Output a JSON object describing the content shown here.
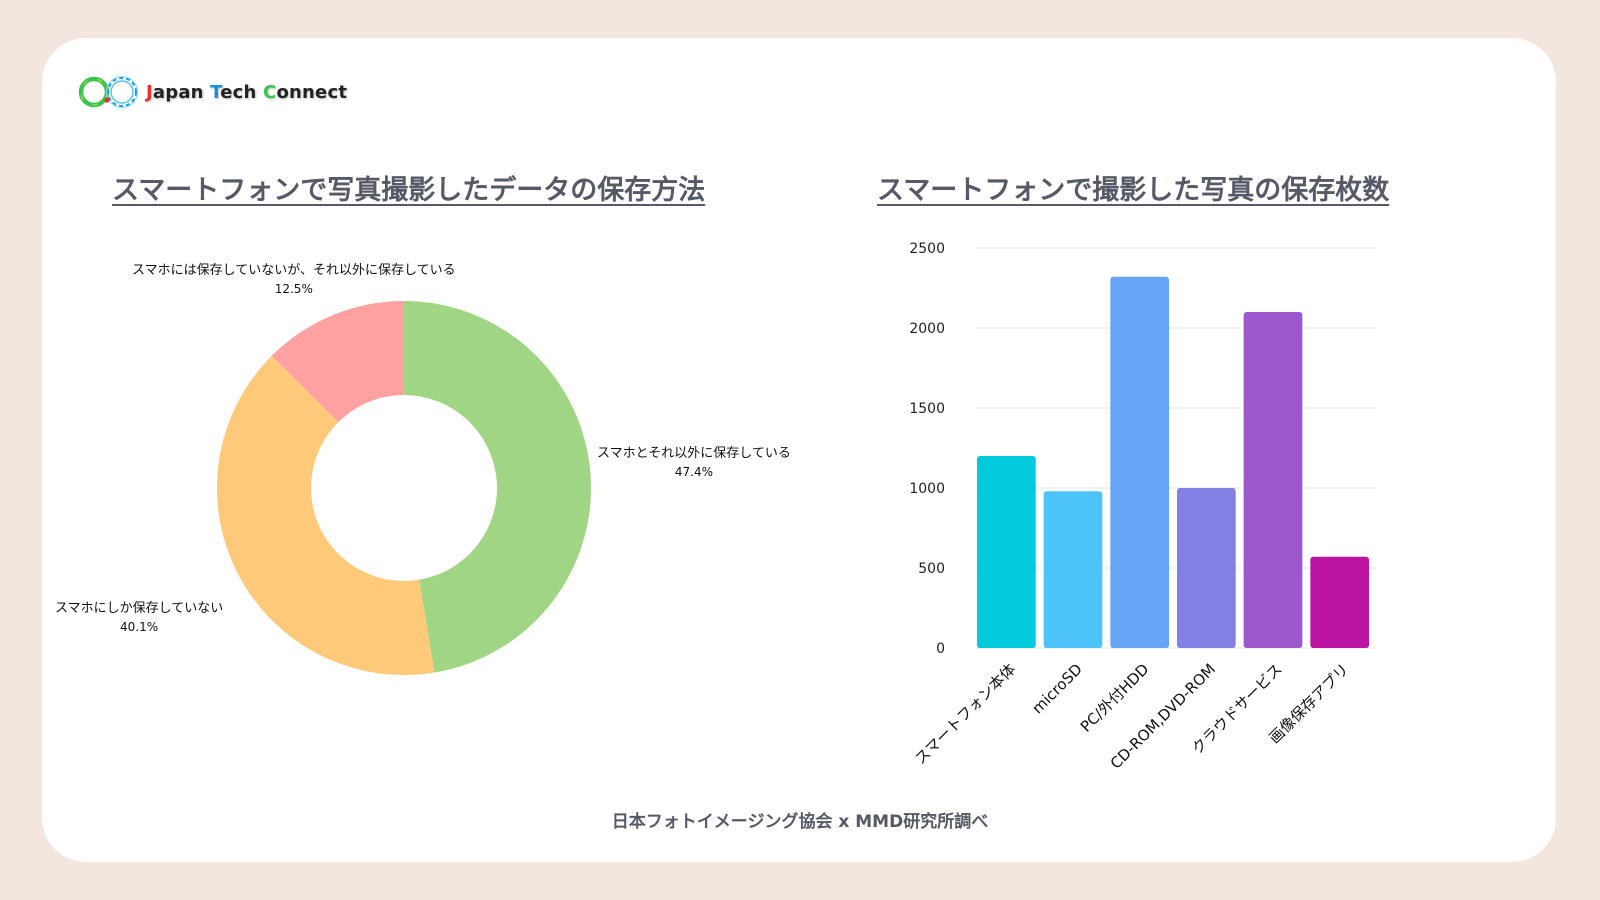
{
  "logo": {
    "text_parts": [
      "J",
      "apan ",
      "T",
      "ech ",
      "C",
      "onnect"
    ],
    "colors": [
      "#e83030",
      "#222222",
      "#1a8fe0",
      "#222222",
      "#39c44a",
      "#222222"
    ]
  },
  "chart_data": [
    {
      "type": "pie",
      "title": "スマートフォンで写真撮影したデータの保存方法",
      "donut": true,
      "slices": [
        {
          "label": "スマホとそれ以外に保存している",
          "value_label": "47.4%",
          "value": 47.4,
          "color": "#a0d683"
        },
        {
          "label": "スマホにしか保存していない",
          "value_label": "40.1%",
          "value": 40.1,
          "color": "#ffc97a"
        },
        {
          "label": "スマホには保存していないが、それ以外に保存している",
          "value_label": "12.5%",
          "value": 12.5,
          "color": "#ffa1a1"
        }
      ]
    },
    {
      "type": "bar",
      "title": "スマートフォンで撮影した写真の保存枚数",
      "categories": [
        "スマートフォン本体",
        "microSD",
        "PC/外付HDD",
        "CD-ROM,DVD-ROM",
        "クラウドサービス",
        "画像保存アプリ"
      ],
      "values": [
        1200,
        980,
        2320,
        1000,
        2100,
        570
      ],
      "colors": [
        "#00cadc",
        "#4cc3fa",
        "#66a4f5",
        "#8380e5",
        "#9c57cd",
        "#bb13a2"
      ],
      "ylim": [
        0,
        2500
      ],
      "yticks": [
        "0",
        "500",
        "1000",
        "1500",
        "2000",
        "2500"
      ],
      "grid": true
    }
  ],
  "source": "日本フォトイメージング協会 x MMD研究所調べ"
}
